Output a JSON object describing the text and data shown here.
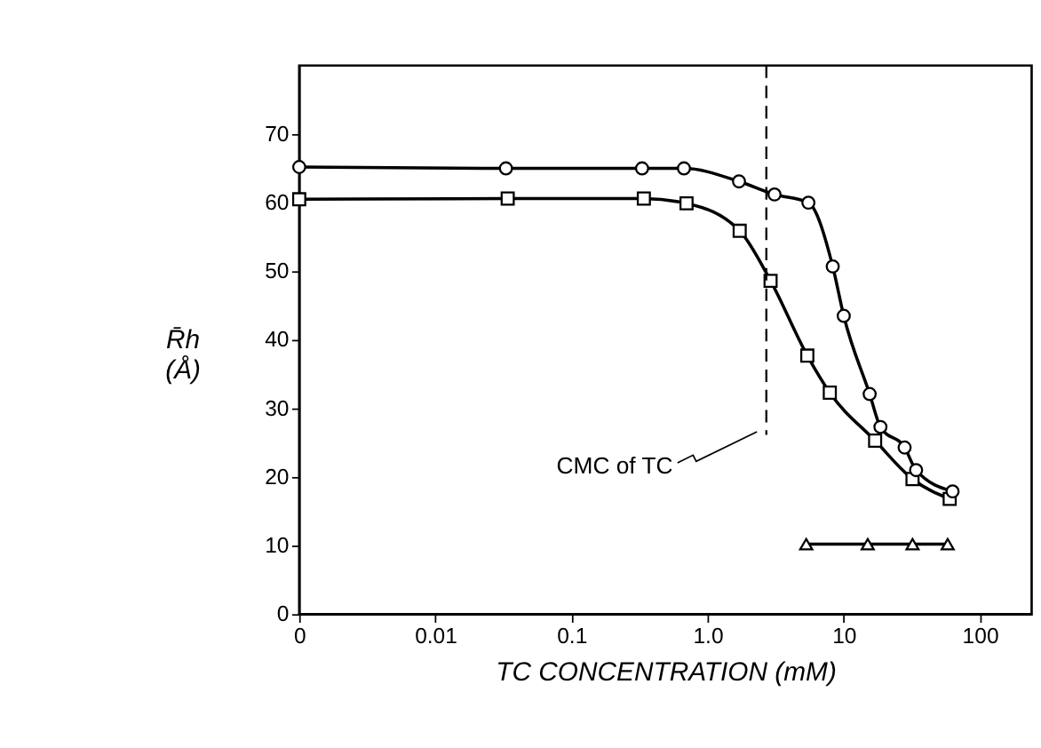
{
  "chart_data": {
    "type": "line",
    "xlabel": "TC CONCENTRATION (mM)",
    "ylabel": "R̄h (Å)",
    "log": "x",
    "xlim": [
      0.001,
      240
    ],
    "ylim": [
      0,
      80
    ],
    "xticks": [
      {
        "value": 0.001,
        "label": "0"
      },
      0.01,
      0.1,
      {
        "value": 1,
        "label": "1.0"
      },
      10,
      100
    ],
    "yticks": [
      0,
      10,
      20,
      30,
      40,
      50,
      60,
      70
    ],
    "grid": false,
    "legend": false,
    "line_style": "solid",
    "series": [
      {
        "color": "#000000",
        "marker": "circle",
        "x": [
          0.001,
          0.033,
          0.33,
          0.67,
          1.7,
          3.1,
          5.5,
          8.3,
          10,
          15.5,
          18.6,
          28,
          34,
          63
        ],
        "values": [
          65.2,
          65,
          65,
          65,
          63.1,
          61.2,
          60,
          50.7,
          43.5,
          32.1,
          27.3,
          24.3,
          21,
          17.9
        ]
      },
      {
        "color": "#000000",
        "marker": "square",
        "x": [
          0.001,
          0.034,
          0.34,
          0.7,
          1.72,
          2.9,
          5.4,
          7.9,
          17,
          32,
          60
        ],
        "values": [
          60.5,
          60.6,
          60.6,
          59.9,
          55.9,
          48.6,
          37.7,
          32.3,
          25.3,
          19.7,
          16.8
        ]
      },
      {
        "color": "#000000",
        "marker": "triangle",
        "x": [
          5.3,
          15,
          32,
          58
        ],
        "values": [
          10.2,
          10.2,
          10.2,
          10.2
        ]
      }
    ],
    "ref_lines": [
      {
        "axis": "x",
        "value": 2.7,
        "line_style": "dashed",
        "color": "#000000"
      }
    ],
    "annotations": [
      "CMC of TC"
    ]
  }
}
